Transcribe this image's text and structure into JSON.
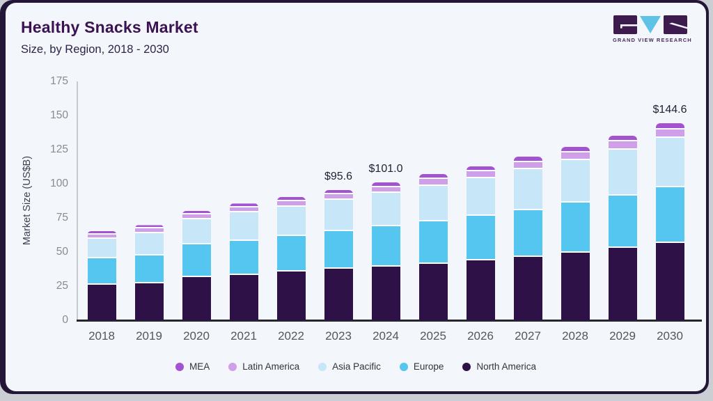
{
  "header": {
    "title": "Healthy Snacks Market",
    "subtitle": "Size, by Region, 2018 - 2030",
    "logo_text": "GRAND VIEW RESEARCH"
  },
  "chart_data": {
    "type": "bar",
    "stacked": true,
    "title": "Healthy Snacks Market Size, by Region, 2018 - 2030",
    "ylabel": "Market Size (US$B)",
    "ylim": [
      0,
      175
    ],
    "yticks": [
      0,
      25,
      50,
      75,
      100,
      125,
      150,
      175
    ],
    "grid": false,
    "legend_position": "bottom",
    "categories": [
      "2018",
      "2019",
      "2020",
      "2021",
      "2022",
      "2023",
      "2024",
      "2025",
      "2026",
      "2027",
      "2028",
      "2029",
      "2030"
    ],
    "series": [
      {
        "name": "North America",
        "color": "#2e1147",
        "values": [
          26.1,
          26.9,
          31.4,
          33.1,
          35.5,
          37.6,
          39.2,
          41.5,
          43.7,
          46.4,
          49.5,
          53.3,
          56.5
        ]
      },
      {
        "name": "Europe",
        "color": "#54c6f0",
        "values": [
          19.1,
          20.3,
          24.1,
          24.9,
          26.1,
          27.8,
          29.6,
          30.9,
          32.8,
          34.2,
          36.9,
          37.9,
          41.0
        ]
      },
      {
        "name": "Asia Pacific",
        "color": "#c7e7f8",
        "values": [
          14.5,
          16.7,
          18.3,
          20.9,
          21.7,
          23.0,
          24.4,
          26.3,
          27.6,
          30.1,
          31.1,
          34.0,
          36.0
        ]
      },
      {
        "name": "Latin America",
        "color": "#cfa0e9",
        "values": [
          3.3,
          3.4,
          3.6,
          3.8,
          4.0,
          4.0,
          4.4,
          4.7,
          4.9,
          5.2,
          5.5,
          5.8,
          6.3
        ]
      },
      {
        "name": "MEA",
        "color": "#a352d1",
        "values": [
          2.3,
          2.4,
          2.8,
          2.9,
          3.1,
          3.2,
          3.4,
          3.5,
          3.7,
          3.9,
          4.1,
          4.4,
          4.8
        ]
      }
    ],
    "bar_total_labels": [
      "",
      "",
      "",
      "",
      "",
      "$95.6",
      "$101.0",
      "",
      "",
      "",
      "",
      "",
      "$144.6"
    ],
    "totals": [
      65.3,
      69.7,
      80.2,
      85.6,
      90.4,
      95.6,
      101.0,
      106.9,
      112.7,
      119.8,
      127.1,
      135.4,
      144.6
    ]
  },
  "colors": {
    "page_bg": "#cbced2",
    "frame": "#241637",
    "card_bg": "#f3f6fa",
    "logo_purple": "#3d1b4e",
    "logo_blue": "#5fc3e7"
  }
}
